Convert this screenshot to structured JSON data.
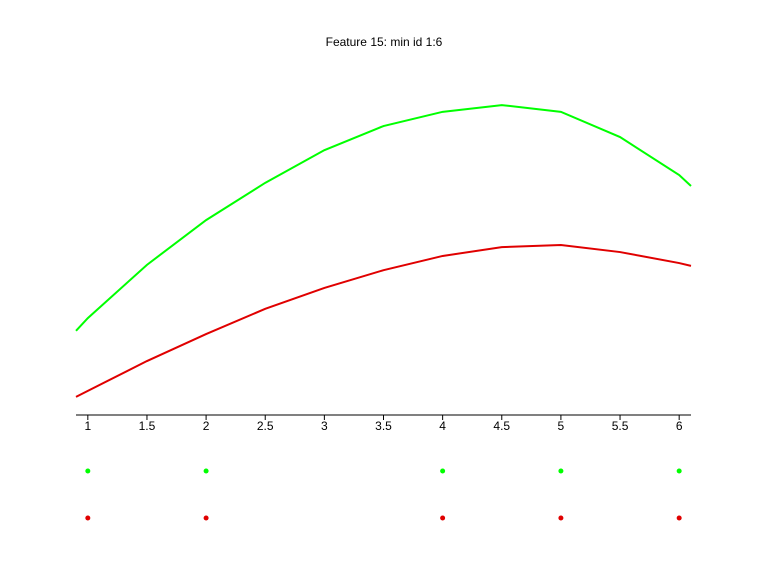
{
  "chart_data": {
    "type": "line",
    "title": "Feature 15: min id 1:6",
    "x": [
      0.9,
      1,
      1.5,
      2,
      2.5,
      3,
      3.5,
      4,
      4.5,
      5,
      5.5,
      6,
      6.1
    ],
    "series": [
      {
        "color": "#00ff00",
        "values": [
          0.237,
          0.273,
          0.423,
          0.549,
          0.654,
          0.746,
          0.814,
          0.854,
          0.873,
          0.854,
          0.783,
          0.676,
          0.645
        ]
      },
      {
        "color": "#e00000",
        "values": [
          0.051,
          0.068,
          0.152,
          0.228,
          0.299,
          0.358,
          0.408,
          0.448,
          0.473,
          0.479,
          0.459,
          0.428,
          0.42
        ]
      }
    ],
    "points": [
      {
        "color": "#00ff00",
        "x": [
          1,
          2,
          4,
          5,
          6
        ]
      },
      {
        "color": "#e00000",
        "x": [
          1,
          2,
          4,
          5,
          6
        ]
      }
    ],
    "xlim": [
      0.9,
      6.1
    ],
    "xticks": [
      1,
      1.5,
      2,
      2.5,
      3,
      3.5,
      4,
      4.5,
      5,
      5.5,
      6
    ],
    "ylim": [
      0,
      1
    ]
  }
}
